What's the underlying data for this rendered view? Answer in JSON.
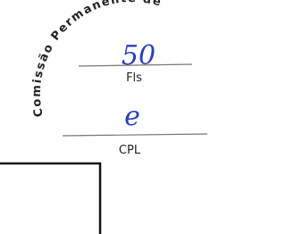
{
  "stamp": {
    "arc_text": "Comissão Permanente de",
    "page_number": "50",
    "page_label": "Fls",
    "rubric": "e",
    "unit": "CPL"
  }
}
